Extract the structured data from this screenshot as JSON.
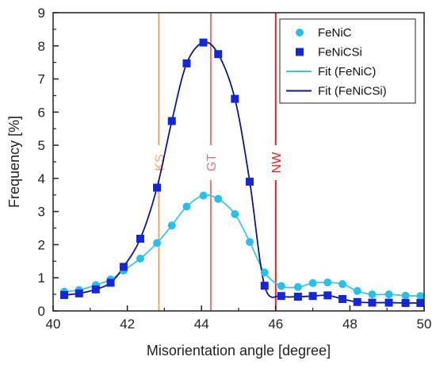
{
  "chart_data": {
    "type": "scatter",
    "xlabel": "Misorientation angle [degree]",
    "ylabel": "Frequency [%]",
    "xlim": [
      40,
      50
    ],
    "ylim": [
      0,
      9
    ],
    "xticks": [
      40,
      42,
      44,
      46,
      48,
      50
    ],
    "yticks": [
      0,
      1,
      2,
      3,
      4,
      5,
      6,
      7,
      8,
      9
    ],
    "grid": false,
    "legend_position": "top-right",
    "series": [
      {
        "name": "FeNiC",
        "marker": "circle",
        "color": "#29bfe8",
        "x": [
          40.3,
          40.7,
          41.15,
          41.55,
          41.9,
          42.35,
          42.8,
          43.2,
          43.6,
          44.05,
          44.45,
          44.9,
          45.3,
          45.7,
          46.15,
          46.6,
          47.0,
          47.4,
          47.8,
          48.2,
          48.6,
          49.05,
          49.5,
          49.9
        ],
        "y": [
          0.58,
          0.63,
          0.78,
          0.95,
          1.22,
          1.58,
          2.05,
          2.58,
          3.15,
          3.48,
          3.38,
          2.92,
          2.08,
          1.16,
          0.75,
          0.72,
          0.84,
          0.86,
          0.81,
          0.6,
          0.5,
          0.5,
          0.46,
          0.45
        ]
      },
      {
        "name": "FeNiCSi",
        "marker": "square",
        "color": "#1426d6",
        "x": [
          40.3,
          40.7,
          41.15,
          41.55,
          41.9,
          42.35,
          42.8,
          43.2,
          43.6,
          44.05,
          44.45,
          44.9,
          45.3,
          45.7,
          46.15,
          46.6,
          47.0,
          47.4,
          47.8,
          48.2,
          48.6,
          49.05,
          49.5,
          49.9
        ],
        "y": [
          0.48,
          0.53,
          0.65,
          0.85,
          1.33,
          2.18,
          3.72,
          5.73,
          7.47,
          8.1,
          7.75,
          6.4,
          3.9,
          0.76,
          0.45,
          0.43,
          0.45,
          0.47,
          0.36,
          0.27,
          0.25,
          0.25,
          0.24,
          0.24
        ]
      }
    ],
    "fits": [
      {
        "name": "Fit (FeNiC)",
        "color": "#3ec4ea",
        "of": "FeNiC"
      },
      {
        "name": "Fit (FeNiCSi)",
        "color": "#0a1a8c",
        "of": "FeNiCSi"
      }
    ],
    "reference_lines": [
      {
        "label": "KS",
        "x": 42.85,
        "color": "#f5a66c"
      },
      {
        "label": "GT",
        "x": 44.25,
        "color": "#ef7373"
      },
      {
        "label": "NW",
        "x": 46.0,
        "color": "#e52222"
      }
    ]
  }
}
